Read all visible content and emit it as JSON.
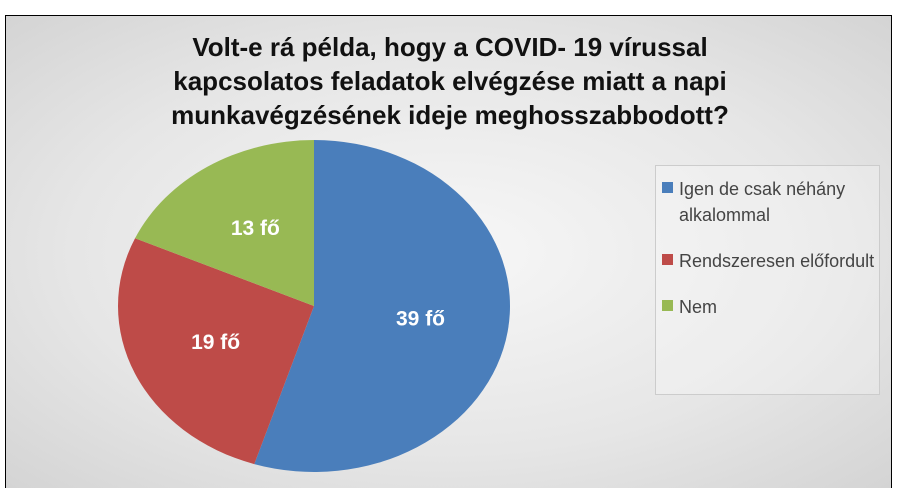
{
  "chart_data": {
    "type": "pie",
    "title": [
      "Volt-e rá példa, hogy a COVID- 19 vírussal",
      "kapcsolatos feladatok elvégzése miatt a napi",
      "munkavégzésének ideje meghosszabbodott?"
    ],
    "categories": [
      "Igen de csak néhány alkalommal",
      "Rendszeresen előfordult",
      "Nem"
    ],
    "values": [
      39,
      19,
      13
    ],
    "value_labels": [
      "39 fő",
      "19 fő",
      "13 fő"
    ],
    "colors": [
      "#4a7ebb",
      "#be4b48",
      "#98b954"
    ],
    "legend": "right"
  }
}
